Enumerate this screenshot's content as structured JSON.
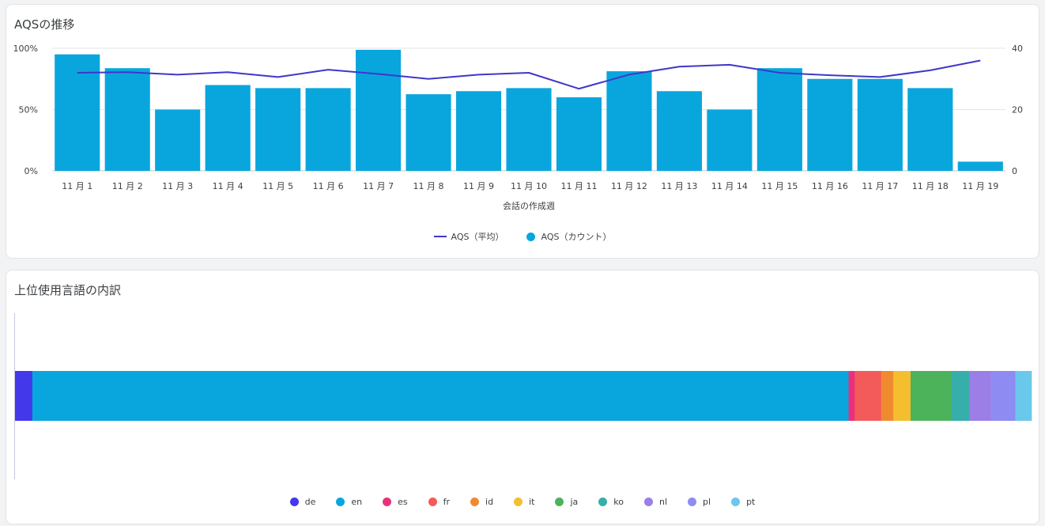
{
  "card1": {
    "title": "AQSの推移"
  },
  "card2": {
    "title": "上位使用言語の内訳"
  },
  "chart_data": [
    {
      "type": "bar+line",
      "categories": [
        "11 月 1",
        "11 月 2",
        "11 月 3",
        "11 月 4",
        "11 月 5",
        "11 月 6",
        "11 月 7",
        "11 月 8",
        "11 月 9",
        "11 月 10",
        "11 月 11",
        "11 月 12",
        "11 月 13",
        "11 月 14",
        "11 月 15",
        "11 月 16",
        "11 月 17",
        "11 月 18",
        "11 月 19"
      ],
      "series": [
        {
          "name": "AQS（カウント）",
          "type": "bar",
          "axis": "right",
          "color": "#09a6de",
          "values": [
            38,
            33.5,
            20,
            28,
            27,
            27,
            39.5,
            25,
            26,
            27,
            24,
            32.5,
            26,
            20,
            33.5,
            30,
            30,
            27,
            3
          ]
        },
        {
          "name": "AQS（平均）",
          "type": "line",
          "axis": "left",
          "color": "#3f37c9",
          "values": [
            80,
            80.5,
            78.5,
            80.5,
            76.5,
            82.5,
            79,
            75,
            78.5,
            80,
            67,
            78.5,
            85,
            86.5,
            80,
            78,
            76.5,
            82,
            90
          ]
        }
      ],
      "y_left": {
        "ticks": [
          "0%",
          "50%",
          "100%"
        ],
        "range": [
          0,
          100
        ]
      },
      "y_right": {
        "ticks": [
          "0",
          "20",
          "40"
        ],
        "range": [
          0,
          40
        ]
      },
      "xlabel": "会話の作成週",
      "grid": true,
      "legend_position": "bottom"
    },
    {
      "type": "stacked-bar-horizontal",
      "categories": [
        "de",
        "en",
        "es",
        "fr",
        "id",
        "it",
        "ja",
        "ko",
        "nl",
        "pl",
        "pt"
      ],
      "colors": [
        "#4338ea",
        "#09a6de",
        "#e8317a",
        "#f35a5a",
        "#f08a30",
        "#f5be2e",
        "#4db35b",
        "#36aea9",
        "#9b7ee6",
        "#8e8bf2",
        "#6ac8ea"
      ],
      "values": [
        1.7,
        80.3,
        0.6,
        2.6,
        1.2,
        1.7,
        4.0,
        1.8,
        2.1,
        2.4,
        1.6
      ],
      "legend_position": "bottom"
    }
  ]
}
